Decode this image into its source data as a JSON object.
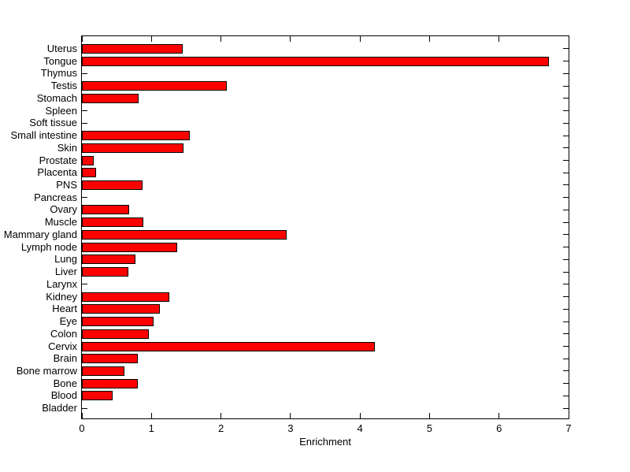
{
  "figure": {
    "background_color": "#ffffff",
    "axis_box_color": "#000000"
  },
  "chart_data": {
    "type": "bar",
    "orientation": "horizontal",
    "title": "",
    "xlabel": "Enrichment",
    "ylabel": "",
    "xlim": [
      0,
      7
    ],
    "xticks": [
      0,
      1,
      2,
      3,
      4,
      5,
      6,
      7
    ],
    "grid": false,
    "legend_position": "none",
    "bar_color": "#ff0000",
    "bar_border_color": "#000000",
    "categories": [
      "Uterus",
      "Tongue",
      "Thymus",
      "Testis",
      "Stomach",
      "Spleen",
      "Soft tissue",
      "Small intestine",
      "Skin",
      "Prostate",
      "Placenta",
      "PNS",
      "Pancreas",
      "Ovary",
      "Muscle",
      "Mammary gland",
      "Lymph node",
      "Lung",
      "Liver",
      "Larynx",
      "Kidney",
      "Heart",
      "Eye",
      "Colon",
      "Cervix",
      "Brain",
      "Bone marrow",
      "Bone",
      "Blood",
      "Bladder"
    ],
    "values": [
      1.45,
      6.72,
      0,
      2.08,
      0.81,
      0,
      0,
      1.55,
      1.46,
      0.17,
      0.2,
      0.87,
      0,
      0.68,
      0.88,
      2.94,
      1.37,
      0.77,
      0.67,
      0,
      1.26,
      1.12,
      1.03,
      0.96,
      4.21,
      0.8,
      0.61,
      0.8,
      0.44,
      0
    ]
  }
}
